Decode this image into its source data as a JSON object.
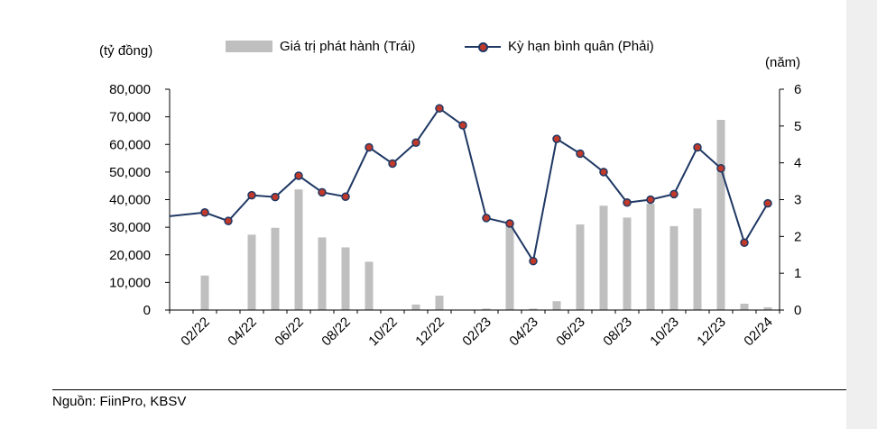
{
  "colors": {
    "bar": "#bfbfbf",
    "line": "#1f3864",
    "marker": "#c0392b",
    "axis": "#000000"
  },
  "chart_data": {
    "type": "bar",
    "combo": "bar + line (dual axis)",
    "left_unit": "(tỷ đồng)",
    "right_unit": "(năm)",
    "legend_position": "top",
    "series": [
      {
        "name": "Giá trị phát hành (Trái)",
        "type": "bar",
        "axis": "left"
      },
      {
        "name": "Kỳ hạn bình quân (Phải)",
        "type": "line",
        "axis": "right"
      }
    ],
    "ylim_left": [
      0,
      80000
    ],
    "ylim_right": [
      0,
      6
    ],
    "yticks_left": [
      "80,000",
      "70,000",
      "60,000",
      "50,000",
      "40,000",
      "30,000",
      "20,000",
      "10,000",
      "0"
    ],
    "yticks_right": [
      "6",
      "5",
      "4",
      "3",
      "2",
      "1",
      "0"
    ],
    "x_tick_labels": [
      "02/22",
      "04/22",
      "06/22",
      "08/22",
      "10/22",
      "12/22",
      "02/23",
      "04/23",
      "06/23",
      "08/23",
      "10/23",
      "12/23",
      "02/24"
    ],
    "points": [
      {
        "x": "01/22",
        "bar": 0,
        "line": 2.55
      },
      {
        "x": "02/22",
        "bar": 12500,
        "line": 2.65
      },
      {
        "x": "03/22",
        "bar": 0,
        "line": 2.42
      },
      {
        "x": "04/22",
        "bar": 27300,
        "line": 3.12
      },
      {
        "x": "05/22",
        "bar": 29800,
        "line": 3.07
      },
      {
        "x": "06/22",
        "bar": 43700,
        "line": 3.65
      },
      {
        "x": "07/22",
        "bar": 26300,
        "line": 3.2
      },
      {
        "x": "08/22",
        "bar": 22700,
        "line": 3.08
      },
      {
        "x": "09/22",
        "bar": 17500,
        "line": 4.42
      },
      {
        "x": "10/22",
        "bar": 0,
        "line": 3.98
      },
      {
        "x": "11/22",
        "bar": 2000,
        "line": 4.55
      },
      {
        "x": "12/22",
        "bar": 5200,
        "line": 5.48
      },
      {
        "x": "01/23",
        "bar": 0,
        "line": 5.02
      },
      {
        "x": "02/23",
        "bar": 500,
        "line": 2.5
      },
      {
        "x": "03/23",
        "bar": 31000,
        "line": 2.35
      },
      {
        "x": "04/23",
        "bar": 500,
        "line": 1.33
      },
      {
        "x": "05/23",
        "bar": 3200,
        "line": 4.65
      },
      {
        "x": "06/23",
        "bar": 31000,
        "line": 4.25
      },
      {
        "x": "07/23",
        "bar": 37800,
        "line": 3.75
      },
      {
        "x": "08/23",
        "bar": 33500,
        "line": 2.92
      },
      {
        "x": "09/23",
        "bar": 38500,
        "line": 3.0
      },
      {
        "x": "10/23",
        "bar": 30400,
        "line": 3.15
      },
      {
        "x": "11/23",
        "bar": 36800,
        "line": 4.42
      },
      {
        "x": "12/23",
        "bar": 68900,
        "line": 3.85
      },
      {
        "x": "01/24",
        "bar": 2300,
        "line": 1.83
      },
      {
        "x": "02/24",
        "bar": 1000,
        "line": 2.9
      }
    ]
  },
  "legend": {
    "bar_label": "Giá trị phát hành (Trái)",
    "line_label": "Kỳ hạn bình quân (Phải)"
  },
  "source": "Nguồn: FiinPro, KBSV"
}
